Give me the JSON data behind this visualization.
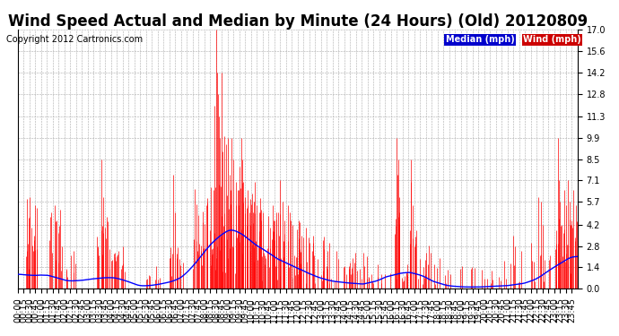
{
  "title": "Wind Speed Actual and Median by Minute (24 Hours) (Old) 20120809",
  "copyright": "Copyright 2012 Cartronics.com",
  "legend_median_label": "Median (mph)",
  "legend_wind_label": "Wind (mph)",
  "legend_median_bg": "#0000cc",
  "legend_wind_bg": "#cc0000",
  "legend_text_color": "#ffffff",
  "y_ticks": [
    0.0,
    1.4,
    2.8,
    4.2,
    5.7,
    7.1,
    8.5,
    9.9,
    11.3,
    12.8,
    14.2,
    15.6,
    17.0
  ],
  "y_min": 0.0,
  "y_max": 17.0,
  "bg_color": "#ffffff",
  "plot_bg_color": "#ffffff",
  "grid_color": "#aaaaaa",
  "wind_color": "#ff0000",
  "median_color": "#0000ff",
  "title_fontsize": 12,
  "copyright_fontsize": 7,
  "tick_fontsize": 7
}
